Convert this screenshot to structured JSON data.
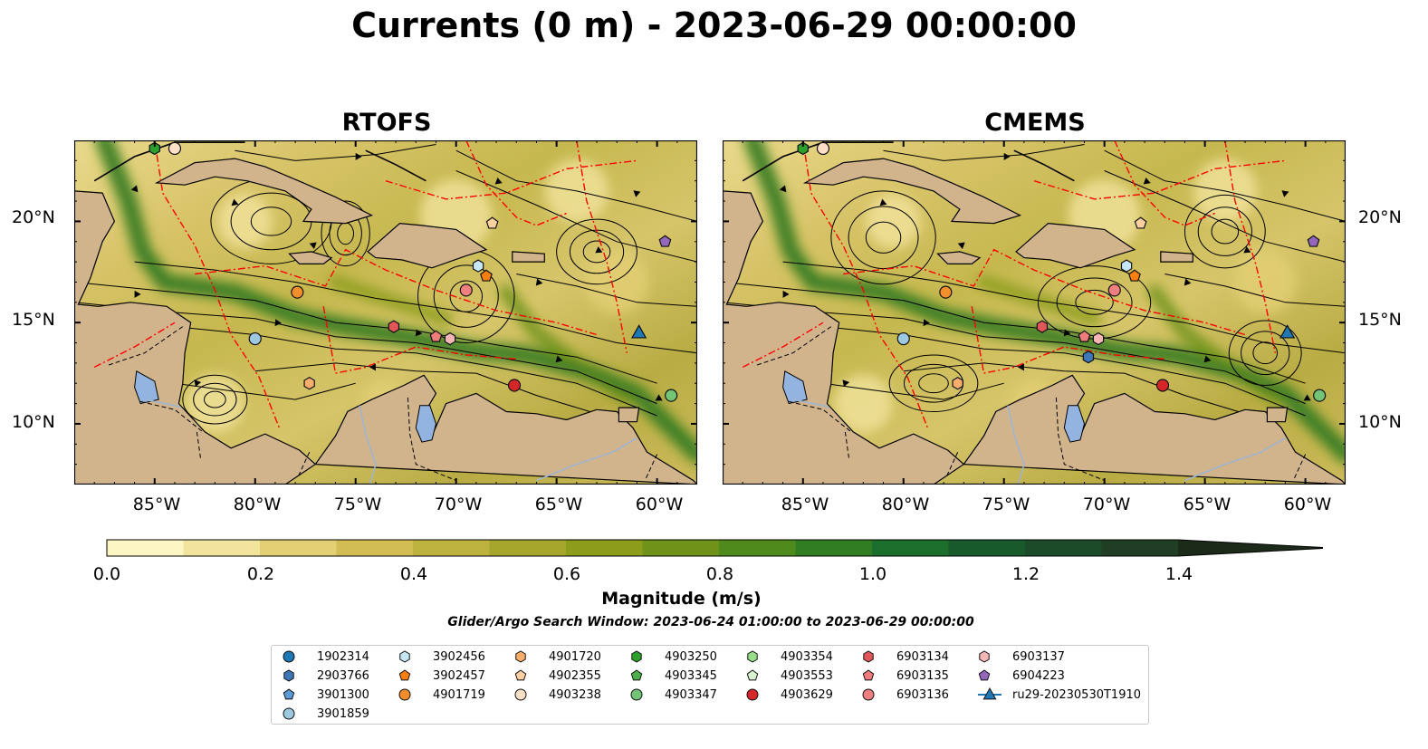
{
  "title": "Currents (0 m) - 2023-06-29 00:00:00",
  "panels": [
    {
      "title": "RTOFS",
      "eddies": [
        [
          -79.2,
          20.0,
          3.0,
          2.1
        ],
        [
          -69.5,
          16.3,
          2.4,
          2.3
        ],
        [
          -75.5,
          19.4,
          1.2,
          1.6
        ],
        [
          -63.0,
          18.5,
          2.0,
          1.6
        ],
        [
          -82.0,
          11.2,
          1.6,
          1.2
        ]
      ]
    },
    {
      "title": "CMEMS",
      "eddies": [
        [
          -81.0,
          19.2,
          2.6,
          2.3
        ],
        [
          -70.5,
          16.0,
          2.8,
          1.8
        ],
        [
          -64.0,
          19.5,
          2.0,
          1.8
        ],
        [
          -62.0,
          13.5,
          1.8,
          1.6
        ],
        [
          -78.5,
          12.0,
          2.2,
          1.4
        ]
      ]
    }
  ],
  "lat_ticks": [
    "20°N",
    "15°N",
    "10°N"
  ],
  "lon_ticks": [
    "85°W",
    "80°W",
    "75°W",
    "70°W",
    "65°W",
    "60°W"
  ],
  "colorbar": {
    "label": "Magnitude (m/s)",
    "ticks": [
      "0.0",
      "0.2",
      "0.4",
      "0.6",
      "0.8",
      "1.0",
      "1.2",
      "1.4"
    ],
    "colors": [
      "#fbf6c4",
      "#f1e49c",
      "#e3cf74",
      "#d2bd55",
      "#beb23f",
      "#a6a62c",
      "#8c9d1c",
      "#6f9318",
      "#4f8a1c",
      "#317e22",
      "#1c6e2c",
      "#195a2c",
      "#1c4b29",
      "#1f3e24",
      "#1f321f",
      "#1b2a19"
    ]
  },
  "window_text": "Glider/Argo Search Window: 2023-06-24 01:00:00 to 2023-06-29 00:00:00",
  "chart_data": {
    "type": "heatmap",
    "title": "Currents (0 m) - 2023-06-29 00:00:00",
    "subplots": [
      "RTOFS",
      "CMEMS"
    ],
    "xlim": [
      -89,
      -58
    ],
    "ylim": [
      7,
      24
    ],
    "x_ticks": [
      -85,
      -80,
      -75,
      -70,
      -65,
      -60
    ],
    "y_ticks": [
      10,
      15,
      20
    ],
    "colorbar_range": [
      0.0,
      1.5
    ],
    "colorbar_extend": "max",
    "colorbar_label": "Magnitude (m/s)",
    "overlays": [
      "streamlines",
      "eez boundaries (red dash-dot)",
      "bathymetry contours (-100, -1000 m)"
    ],
    "markers": [
      {
        "id": "1902314",
        "shape": "circle",
        "color": "#1f77b4",
        "lon": null,
        "lat": null
      },
      {
        "id": "2903766",
        "shape": "hexagon",
        "color": "#3d77b8",
        "lon": null,
        "lat": null
      },
      {
        "id": "3901300",
        "shape": "pentagon",
        "color": "#5b9bd5",
        "lon": null,
        "lat": null
      },
      {
        "id": "3901859",
        "shape": "circle",
        "color": "#9ecae1",
        "lon": -80.0,
        "lat": 14.2
      },
      {
        "id": "3902456",
        "shape": "hexagon",
        "color": "#c6e7f7",
        "lon": -68.9,
        "lat": 17.8
      },
      {
        "id": "3902457",
        "shape": "pentagon",
        "color": "#ff7f0e",
        "lon": -68.5,
        "lat": 17.3
      },
      {
        "id": "4901719",
        "shape": "circle",
        "color": "#f28e2b",
        "lon": -77.9,
        "lat": 16.5
      },
      {
        "id": "4901720",
        "shape": "hexagon",
        "color": "#fdae6b",
        "lon": -77.3,
        "lat": 12.0
      },
      {
        "id": "4902355",
        "shape": "pentagon",
        "color": "#fdd0a2",
        "lon": -68.2,
        "lat": 19.9
      },
      {
        "id": "4903238",
        "shape": "circle",
        "color": "#fde0c5",
        "lon": -84.0,
        "lat": 23.6
      },
      {
        "id": "4903250",
        "shape": "hexagon",
        "color": "#2ca02c",
        "lon": -85.0,
        "lat": 23.6
      },
      {
        "id": "4903345",
        "shape": "pentagon",
        "color": "#4daf4a",
        "lon": null,
        "lat": null
      },
      {
        "id": "4903347",
        "shape": "circle",
        "color": "#74c476",
        "lon": -59.3,
        "lat": 11.4
      },
      {
        "id": "4903354",
        "shape": "hexagon",
        "color": "#98df8a",
        "lon": null,
        "lat": null
      },
      {
        "id": "4903553",
        "shape": "pentagon",
        "color": "#d9f2d0",
        "lon": null,
        "lat": null
      },
      {
        "id": "4903629",
        "shape": "circle",
        "color": "#d62728",
        "lon": -67.1,
        "lat": 11.9
      },
      {
        "id": "6903134",
        "shape": "hexagon",
        "color": "#e15759",
        "lon": -73.1,
        "lat": 14.8
      },
      {
        "id": "6903135",
        "shape": "pentagon",
        "color": "#f07b7b",
        "lon": -71.0,
        "lat": 14.3
      },
      {
        "id": "6903136",
        "shape": "circle",
        "color": "#f08080",
        "lon": -69.5,
        "lat": 16.6
      },
      {
        "id": "6903137",
        "shape": "hexagon",
        "color": "#f7b6b6",
        "lon": -70.3,
        "lat": 14.2
      },
      {
        "id": "6904223",
        "shape": "pentagon",
        "color": "#9467bd",
        "lon": -59.6,
        "lat": 19.0
      },
      {
        "id": "ru29-20230530T1910",
        "shape": "triangle",
        "color": "#1f77b4",
        "lon": -60.9,
        "lat": 14.5
      }
    ],
    "legend_ncol": 7,
    "legend_placement": "bottom-center"
  }
}
